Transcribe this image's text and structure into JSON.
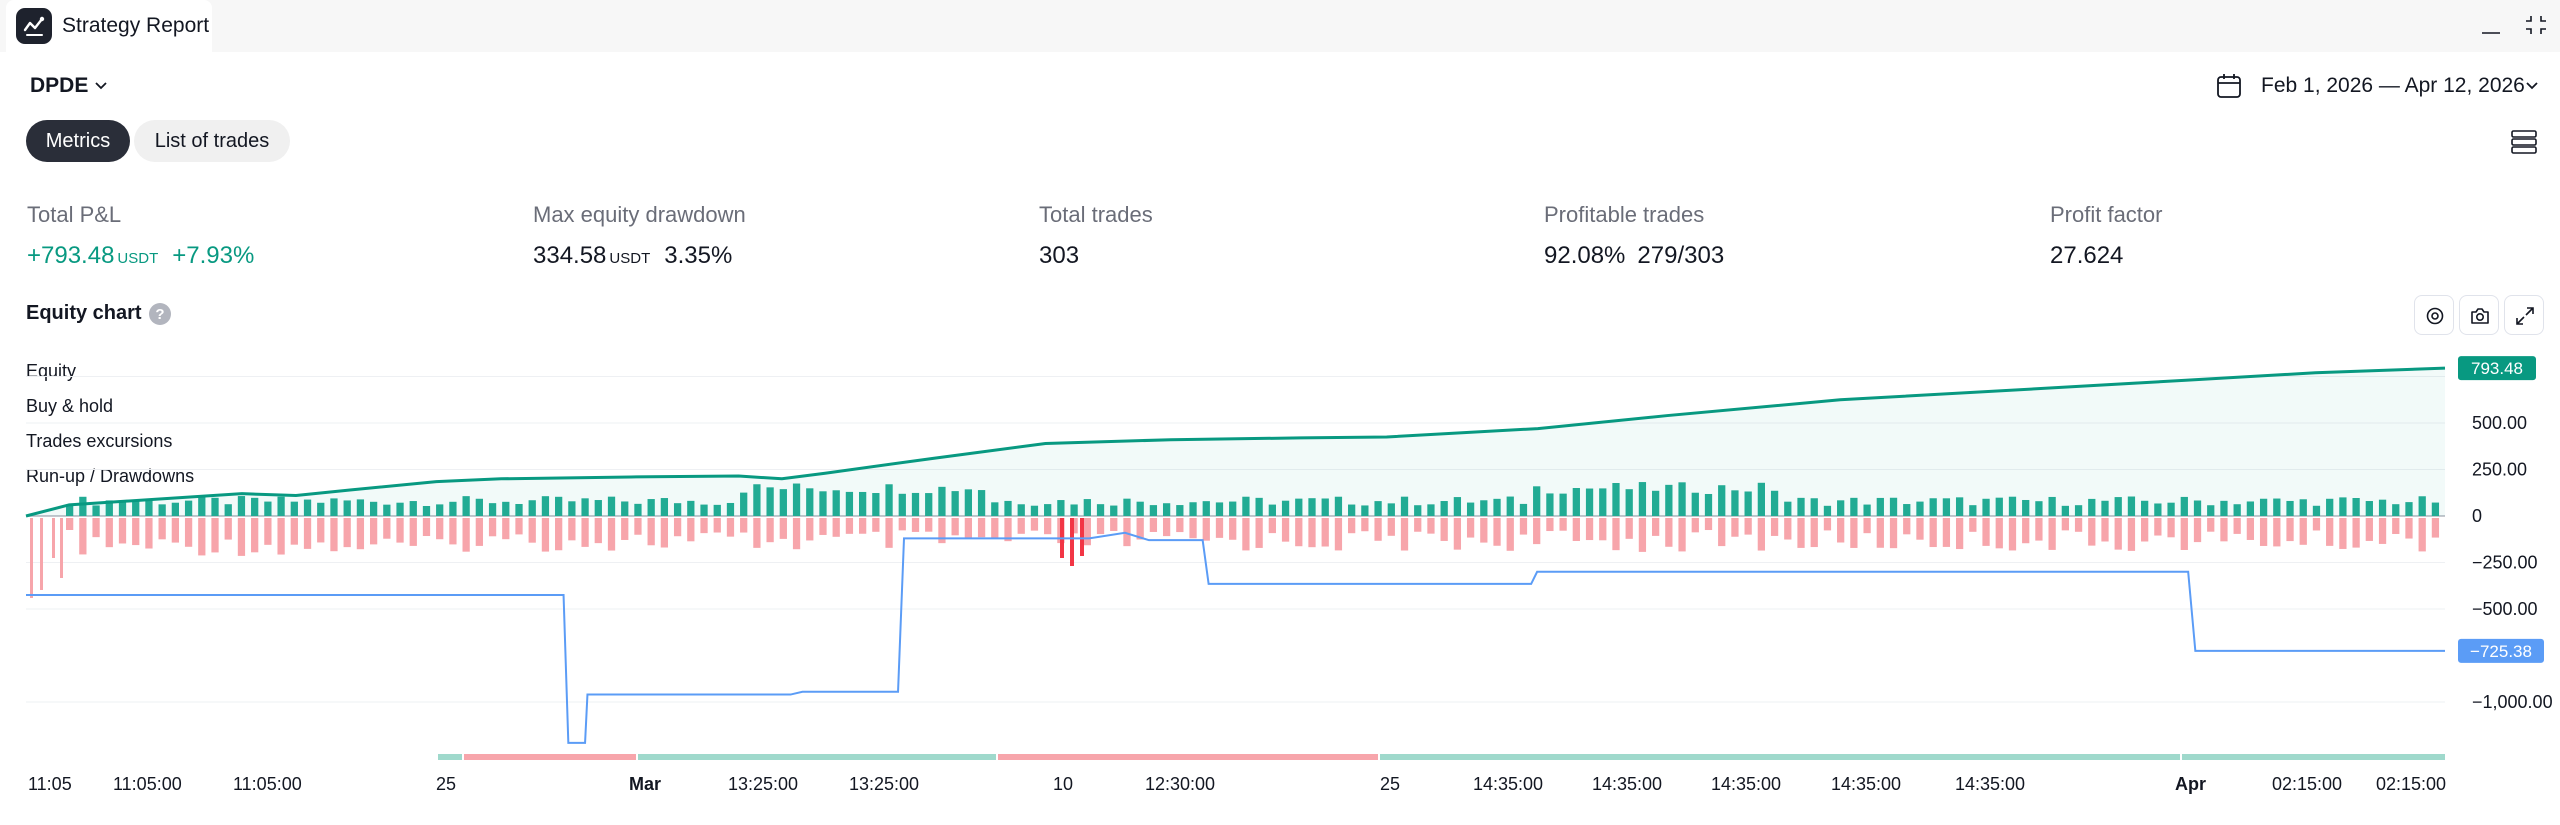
{
  "window": {
    "tab_title": "Strategy Report",
    "logo_icon": "strategy-report-logo-icon",
    "controls": [
      "minimize-icon",
      "restore-icon"
    ]
  },
  "header": {
    "symbol": "DPDE",
    "date_range": "Feb 1, 2026 — Apr 12, 2026",
    "tabs": [
      {
        "label": "Metrics",
        "active": true
      },
      {
        "label": "List of trades",
        "active": false
      }
    ]
  },
  "metrics": {
    "total_pnl": {
      "label": "Total P&L",
      "value": "+793.48",
      "unit": "USDT",
      "percent": "+7.93%"
    },
    "max_drawdown": {
      "label": "Max equity drawdown",
      "value": "334.58",
      "unit": "USDT",
      "percent": "3.35%"
    },
    "total_trades": {
      "label": "Total trades",
      "value": "303"
    },
    "profitable_trades": {
      "label": "Profitable trades",
      "percent": "92.08%",
      "ratio": "279/303"
    },
    "profit_factor": {
      "label": "Profit factor",
      "value": "27.624"
    }
  },
  "equity_chart": {
    "title": "Equity chart",
    "help": "?",
    "toolbar_icons": [
      "settings-icon",
      "camera-icon",
      "fullscreen-icon"
    ],
    "legend": [
      "Equity",
      "Buy & hold",
      "Trades excursions",
      "Run-up / Drawdowns"
    ]
  },
  "chart_data": {
    "type": "line",
    "colors": {
      "equity": "#089981",
      "buy_hold": "#5b9cf6",
      "runup": "#22ab94",
      "drawdown": "#f7a5ab",
      "drawdown_strong": "#f23645",
      "axis_label_equity": "#089981",
      "axis_label_buyhold": "#5b9cf6"
    },
    "y_axis": {
      "ticks": [
        750,
        500,
        250,
        0,
        -250,
        -500,
        -1000
      ],
      "tick_labels": [
        "",
        "500.00",
        "250.00",
        "0",
        "−250.00",
        "−500.00",
        "−1,000.00"
      ],
      "range": [
        -1250,
        800
      ]
    },
    "x_axis": {
      "tick_labels": [
        "11:05",
        "11:05:00",
        "11:05:00",
        "25",
        "Mar",
        "13:25:00",
        "13:25:00",
        "10",
        "12:30:00",
        "25",
        "14:35:00",
        "14:35:00",
        "14:35:00",
        "14:35:00",
        "14:35:00",
        "Apr",
        "02:15:00",
        "02:15:00"
      ],
      "bold": [
        false,
        false,
        false,
        false,
        true,
        false,
        false,
        false,
        false,
        false,
        false,
        false,
        false,
        false,
        false,
        true,
        false,
        false
      ]
    },
    "n_trades": 303,
    "series": [
      {
        "name": "Equity",
        "last_value_label": "793.48",
        "points": [
          [
            0,
            0
          ],
          [
            20,
            60
          ],
          [
            60,
            90
          ],
          [
            100,
            120
          ],
          [
            125,
            110
          ],
          [
            150,
            140
          ],
          [
            190,
            185
          ],
          [
            220,
            200
          ],
          [
            280,
            210
          ],
          [
            330,
            215
          ],
          [
            350,
            200
          ],
          [
            370,
            230
          ],
          [
            420,
            310
          ],
          [
            472,
            390
          ],
          [
            530,
            410
          ],
          [
            590,
            420
          ],
          [
            630,
            425
          ],
          [
            700,
            470
          ],
          [
            760,
            540
          ],
          [
            840,
            625
          ],
          [
            940,
            690
          ],
          [
            1000,
            730
          ],
          [
            1060,
            770
          ],
          [
            1120,
            795
          ]
        ]
      },
      {
        "name": "Buy & hold",
        "last_value_label": "−725.38",
        "points": [
          [
            0,
            -425
          ],
          [
            450,
            -425
          ],
          [
            454,
            -1220
          ],
          [
            468,
            -1220
          ],
          [
            470,
            -960
          ],
          [
            640,
            -960
          ],
          [
            650,
            -945
          ],
          [
            730,
            -945
          ],
          [
            735,
            -120
          ],
          [
            890,
            -120
          ],
          [
            920,
            -90
          ],
          [
            940,
            -130
          ],
          [
            985,
            -130
          ],
          [
            990,
            -365
          ],
          [
            1260,
            -365
          ],
          [
            1265,
            -300
          ],
          [
            1810,
            -300
          ],
          [
            1816,
            -725
          ],
          [
            2025,
            -725
          ]
        ]
      }
    ],
    "excursions_note": "per-trade run-up (green) and drawdown (red) bars around zero"
  }
}
